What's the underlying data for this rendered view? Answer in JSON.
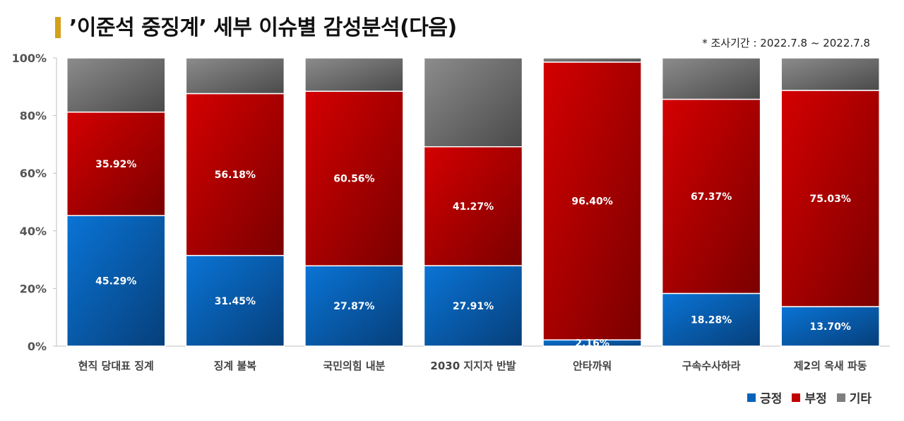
{
  "title": "’이준석 중징계’ 세부 이슈별 감성분석(다음)",
  "period": "* 조사기간 : 2022.7.8 ~ 2022.7.8",
  "colors": {
    "positive": "#0a62b8",
    "negative": "#c00000",
    "other": "#7f7f7f",
    "title_bar": "#d4a017"
  },
  "chart_data": {
    "type": "bar",
    "stacked": true,
    "categories": [
      "현직 당대표 징계",
      "징계 불복",
      "국민의힘 내분",
      "2030 지지자 반발",
      "안타까워",
      "구속수사하라",
      "제2의 옥새 파동"
    ],
    "series": [
      {
        "name": "긍정",
        "values": [
          45.29,
          31.45,
          27.87,
          27.91,
          2.16,
          18.28,
          13.7
        ],
        "labels": [
          "45.29%",
          "31.45%",
          "27.87%",
          "27.91%",
          "2.16%",
          "18.28%",
          "13.70%"
        ]
      },
      {
        "name": "부정",
        "values": [
          35.92,
          56.18,
          60.56,
          41.27,
          96.4,
          67.37,
          75.03
        ],
        "labels": [
          "35.92%",
          "56.18%",
          "60.56%",
          "41.27%",
          "96.40%",
          "67.37%",
          "75.03%"
        ]
      },
      {
        "name": "기타",
        "values": [
          18.79,
          12.37,
          11.57,
          30.82,
          1.44,
          14.35,
          11.27
        ]
      }
    ],
    "yticks": [
      "0%",
      "20%",
      "40%",
      "60%",
      "80%",
      "100%"
    ],
    "ylim": [
      0,
      100
    ],
    "grid": false,
    "legend": "bottom-right"
  }
}
